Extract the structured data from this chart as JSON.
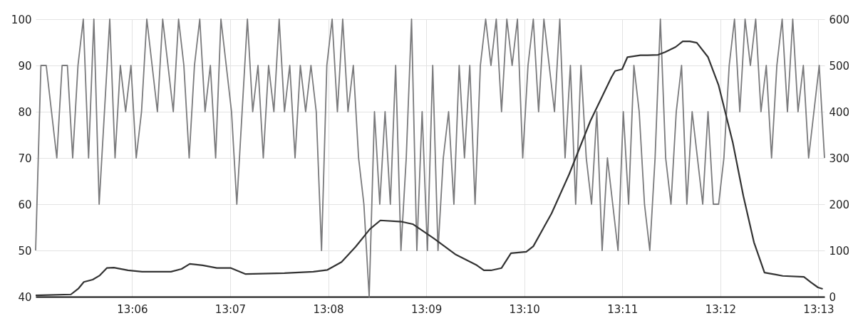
{
  "chart_data": {
    "type": "line",
    "grid": true,
    "xlim": [
      13.0836,
      13.2177
    ],
    "xticks": [
      {
        "value": 13.1,
        "label": "13:06"
      },
      {
        "value": 13.116667,
        "label": "13:07"
      },
      {
        "value": 13.133333,
        "label": "13:08"
      },
      {
        "value": 13.15,
        "label": "13:09"
      },
      {
        "value": 13.166667,
        "label": "13:10"
      },
      {
        "value": 13.183333,
        "label": "13:11"
      },
      {
        "value": 13.2,
        "label": "13:12"
      },
      {
        "value": 13.216667,
        "label": "13:13"
      }
    ],
    "ylim": [
      40,
      100
    ],
    "yticks": [
      40,
      50,
      60,
      70,
      80,
      90,
      100
    ],
    "y2lim": [
      0,
      600
    ],
    "y2ticks": [
      0,
      100,
      200,
      300,
      400,
      500,
      600
    ],
    "series": [
      {
        "color": "#7a7a7c",
        "x": [
          13.0836,
          13.0845,
          13.0854,
          13.0863,
          13.0872,
          13.0881,
          13.089,
          13.0899,
          13.0908,
          13.0917,
          13.0926,
          13.0935,
          13.0944,
          13.0953,
          13.0962,
          13.0971,
          13.098,
          13.0989,
          13.0998,
          13.1007,
          13.1016,
          13.1025,
          13.1034,
          13.1043,
          13.1052,
          13.1061,
          13.107,
          13.1079,
          13.1088,
          13.1097,
          13.1106,
          13.1115,
          13.1124,
          13.1133,
          13.1142,
          13.1151,
          13.116,
          13.1169,
          13.1178,
          13.1187,
          13.1196,
          13.1205,
          13.1214,
          13.1223,
          13.1232,
          13.1241,
          13.125,
          13.1259,
          13.1268,
          13.1277,
          13.1286,
          13.1295,
          13.1304,
          13.1313,
          13.1322,
          13.1331,
          13.134,
          13.1349,
          13.1358,
          13.1367,
          13.1376,
          13.1385,
          13.1394,
          13.1403,
          13.1412,
          13.1421,
          13.143,
          13.1439,
          13.1448,
          13.1457,
          13.1466,
          13.1475,
          13.1484,
          13.1493,
          13.1502,
          13.1511,
          13.152,
          13.1529,
          13.1538,
          13.1547,
          13.1556,
          13.1565,
          13.1574,
          13.1583,
          13.1592,
          13.1601,
          13.161,
          13.1619,
          13.1628,
          13.1637,
          13.1646,
          13.1655,
          13.1664,
          13.1673,
          13.1682,
          13.1691,
          13.17,
          13.1709,
          13.1718,
          13.1727,
          13.1736,
          13.1745,
          13.1754,
          13.1763,
          13.1772,
          13.1781,
          13.179,
          13.1799,
          13.1808,
          13.1817,
          13.1826,
          13.1835,
          13.1844,
          13.1853,
          13.1862,
          13.1871,
          13.188,
          13.1889,
          13.1898,
          13.1907,
          13.1916,
          13.1925,
          13.1934,
          13.1943,
          13.1952,
          13.1961,
          13.197,
          13.1979,
          13.1988,
          13.1997,
          13.2006,
          13.2015,
          13.2024,
          13.2033,
          13.2042,
          13.2051,
          13.206,
          13.2069,
          13.2078,
          13.2087,
          13.2096,
          13.2105,
          13.2114,
          13.2123,
          13.2132,
          13.2141,
          13.215,
          13.2159,
          13.2168,
          13.2177
        ],
        "values": [
          50,
          90,
          90,
          80,
          70,
          90,
          90,
          70,
          90,
          100,
          70,
          100,
          60,
          80,
          100,
          70,
          90,
          80,
          90,
          70,
          80,
          100,
          90,
          80,
          100,
          90,
          80,
          100,
          90,
          70,
          90,
          100,
          80,
          90,
          70,
          100,
          90,
          80,
          60,
          80,
          100,
          80,
          90,
          70,
          90,
          80,
          100,
          80,
          90,
          70,
          90,
          80,
          90,
          80,
          50,
          90,
          100,
          80,
          100,
          80,
          90,
          70,
          60,
          40,
          80,
          60,
          80,
          60,
          90,
          50,
          70,
          100,
          50,
          80,
          50,
          90,
          50,
          70,
          80,
          60,
          90,
          70,
          90,
          60,
          90,
          100,
          90,
          100,
          80,
          100,
          90,
          100,
          70,
          90,
          100,
          80,
          100,
          90,
          80,
          100,
          70,
          90,
          60,
          90,
          70,
          60,
          80,
          50,
          70,
          60,
          50,
          80,
          60,
          90,
          80,
          60,
          50,
          70,
          100,
          70,
          60,
          80,
          90,
          60,
          80,
          70,
          60,
          80,
          60,
          60,
          70,
          90,
          100,
          80,
          100,
          90,
          100,
          80,
          90,
          70,
          90,
          100,
          80,
          100,
          80,
          90,
          70,
          80,
          90,
          70
        ]
      },
      {
        "color": "#333333",
        "axis": "y2",
        "x": [
          13.0836,
          13.0896,
          13.0909,
          13.0918,
          13.0933,
          13.0945,
          13.0957,
          13.0969,
          13.0993,
          13.1017,
          13.1066,
          13.1084,
          13.1098,
          13.112,
          13.1144,
          13.1168,
          13.1193,
          13.1259,
          13.1308,
          13.1332,
          13.1356,
          13.138,
          13.1404,
          13.1422,
          13.1459,
          13.1477,
          13.1513,
          13.1549,
          13.1586,
          13.1598,
          13.161,
          13.1628,
          13.1644,
          13.167,
          13.1682,
          13.1713,
          13.1743,
          13.1779,
          13.1815,
          13.1821,
          13.1833,
          13.1842,
          13.1864,
          13.1876,
          13.1894,
          13.1906,
          13.1924,
          13.1936,
          13.1948,
          13.196,
          13.1979,
          13.1997,
          13.2021,
          13.2039,
          13.2057,
          13.2075,
          13.2094,
          13.2106,
          13.2142,
          13.2154,
          13.2166,
          13.2174
        ],
        "values": [
          3,
          5,
          18,
          32,
          37,
          46,
          62,
          63,
          57,
          54,
          54,
          60,
          71,
          68,
          62,
          62,
          49,
          51,
          54,
          58,
          75,
          108,
          146,
          165,
          162,
          157,
          126,
          92,
          68,
          57,
          57,
          62,
          94,
          97,
          109,
          180,
          265,
          380,
          475,
          488,
          492,
          518,
          522,
          522,
          523,
          529,
          540,
          552,
          552,
          549,
          518,
          457,
          334,
          218,
          118,
          52,
          48,
          45,
          43,
          31,
          20,
          17
        ]
      }
    ]
  }
}
